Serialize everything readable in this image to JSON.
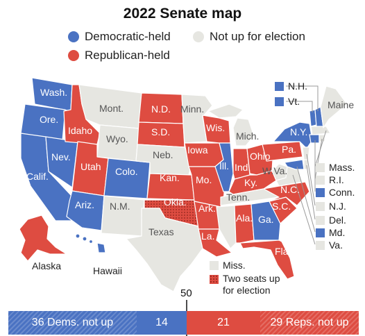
{
  "title": "2022 Senate map",
  "legend": {
    "dem": "Democratic-held",
    "none": "Not up for election",
    "rep": "Republican-held",
    "miss": "Miss.",
    "two_seats": "Two seats up for election"
  },
  "colors": {
    "dem": "#4a72c2",
    "rep": "#de4c41",
    "none": "#e6e6e1",
    "text": "#222222"
  },
  "states": {
    "wa": "Wash.",
    "or": "Ore.",
    "ca": "Calif.",
    "nv": "Nev.",
    "id": "Idaho",
    "mt": "Mont.",
    "wy": "Wyo.",
    "ut": "Utah",
    "co": "Colo.",
    "az": "Ariz.",
    "nm": "N.M.",
    "nd": "N.D.",
    "sd": "S.D.",
    "ne": "Neb.",
    "ks": "Kan.",
    "ok": "Okla.",
    "tx": "Texas",
    "mn": "Minn.",
    "ia": "Iowa",
    "mo": "Mo.",
    "ar": "Ark.",
    "la": "La.",
    "wi": "Wis.",
    "il": "Ill.",
    "mi": "Mich.",
    "in": "Ind.",
    "oh": "Ohio",
    "ky": "Ky.",
    "tn": "Tenn.",
    "al": "Ala.",
    "ga": "Ga.",
    "fl": "Fla.",
    "sc": "S.C.",
    "nc": "N.C.",
    "wv": "W.Va.",
    "pa": "Pa.",
    "ny": "N.Y.",
    "me": "Maine",
    "ak": "Alaska",
    "hi": "Hawaii"
  },
  "northeast": [
    {
      "label": "N.H.",
      "status": "dem"
    },
    {
      "label": "Vt.",
      "status": "dem"
    },
    {
      "label": "Mass.",
      "status": "none"
    },
    {
      "label": "R.I.",
      "status": "none"
    },
    {
      "label": "Conn.",
      "status": "dem"
    },
    {
      "label": "N.J.",
      "status": "none"
    },
    {
      "label": "Del.",
      "status": "none"
    },
    {
      "label": "Md.",
      "status": "dem"
    },
    {
      "label": "Va.",
      "status": "none"
    }
  ],
  "bar": {
    "majority": "50",
    "dem_not_up": "36 Dems. not up",
    "dem_up": "14",
    "rep_up": "21",
    "rep_not_up": "29 Reps. not up"
  }
}
